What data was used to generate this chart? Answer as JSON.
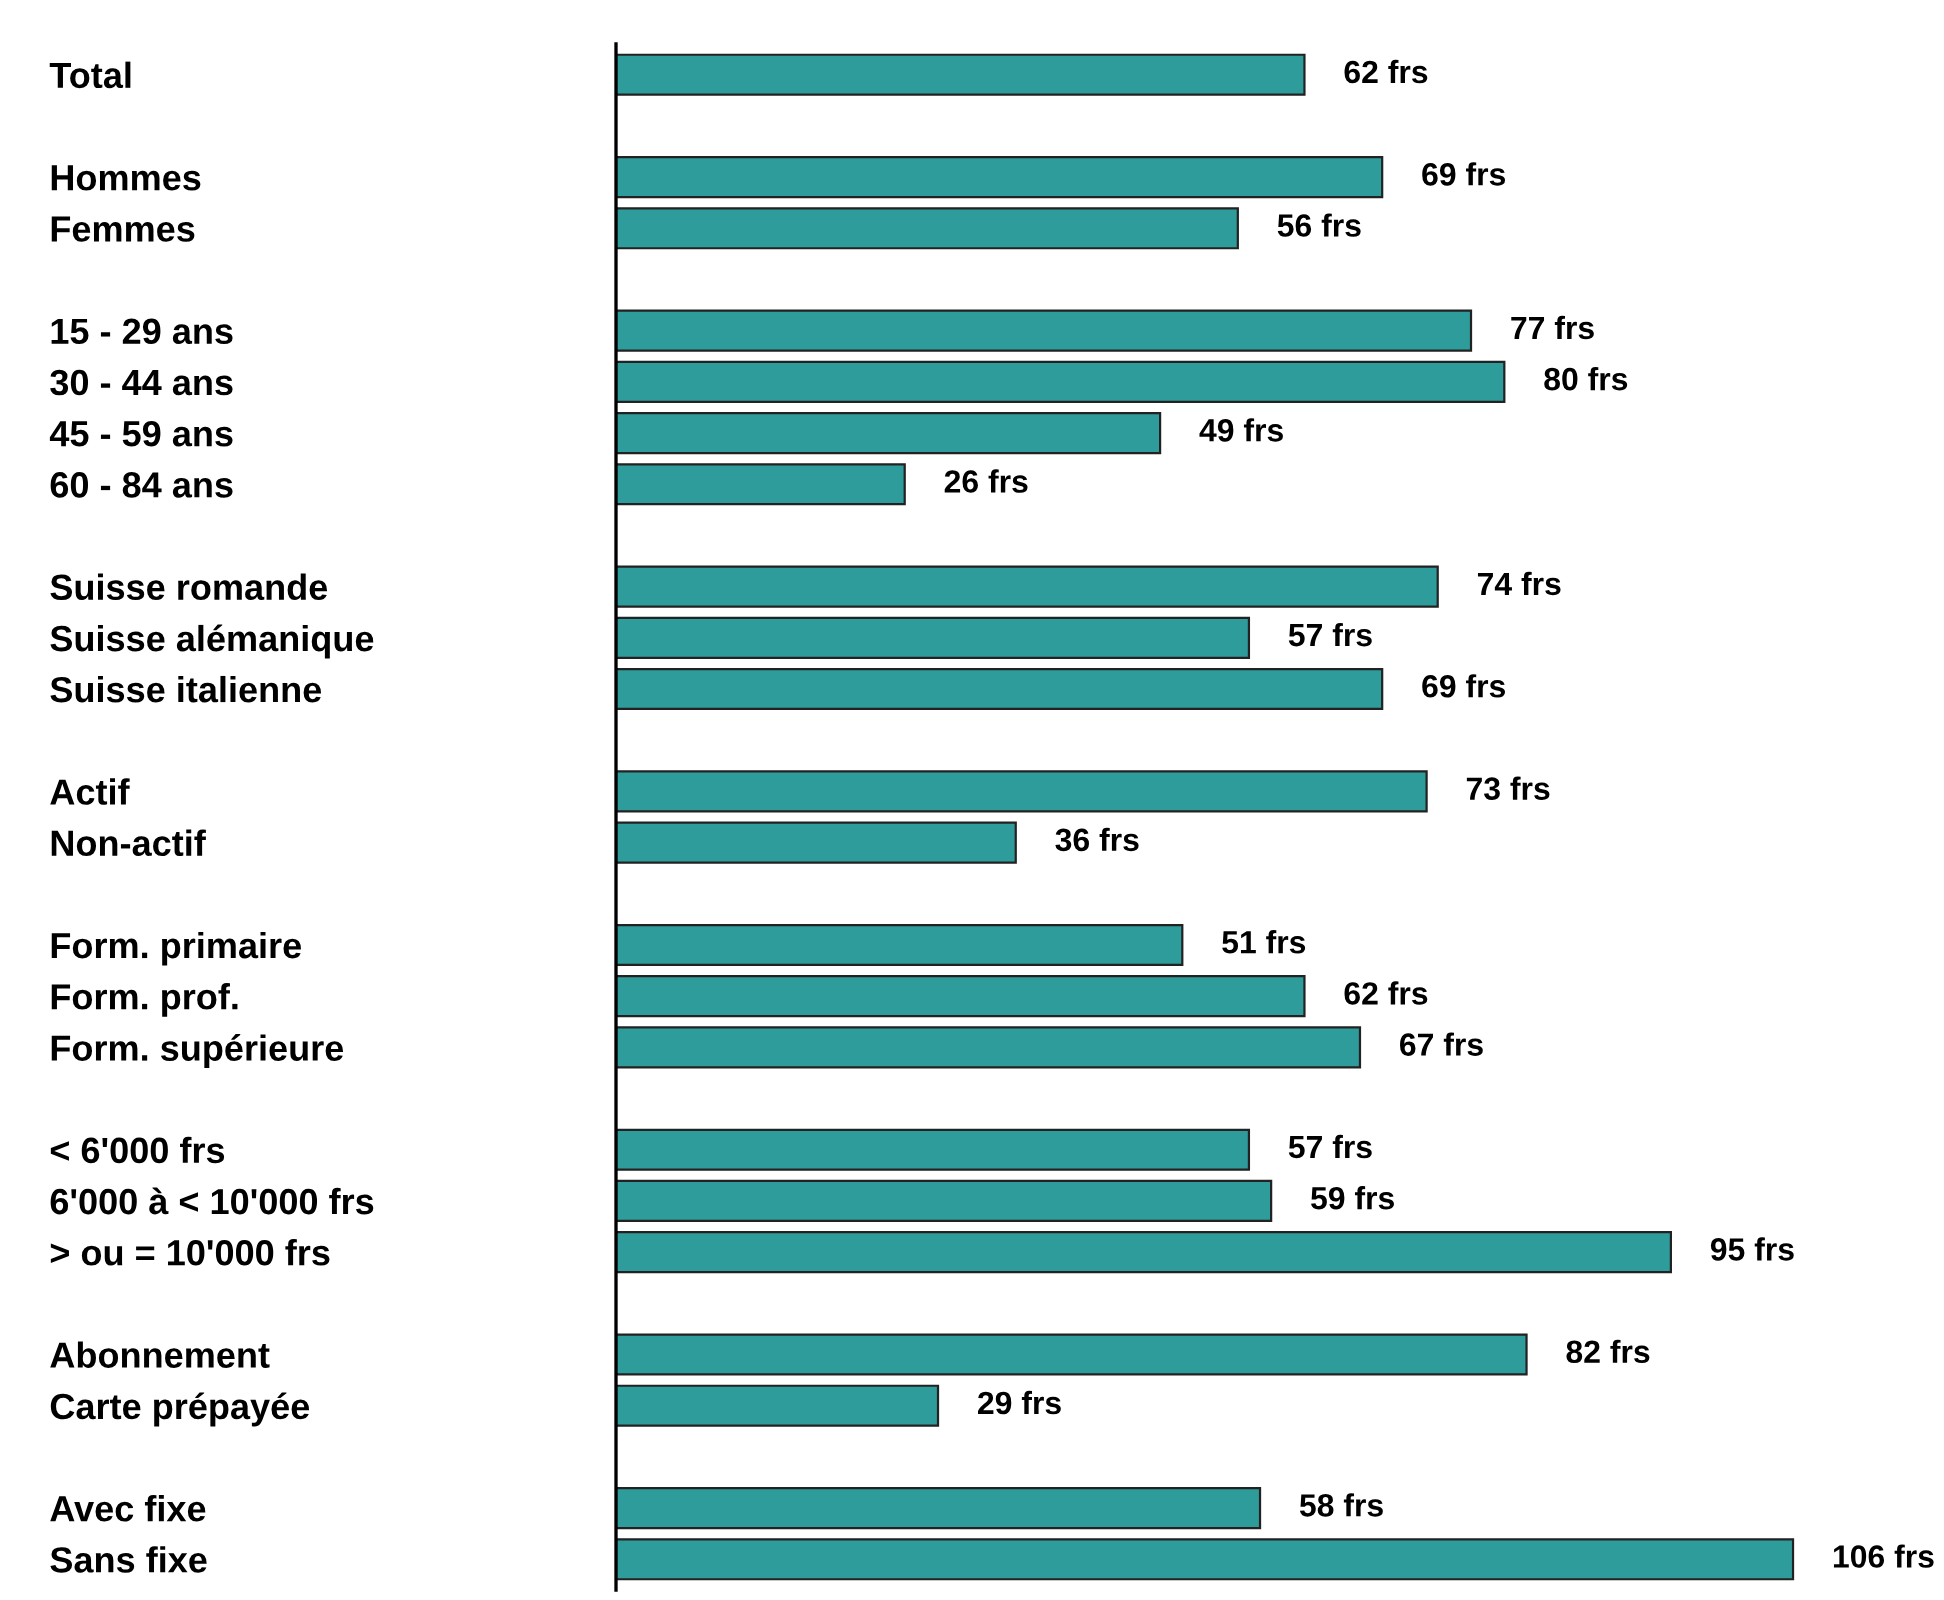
{
  "chart_data": {
    "type": "bar",
    "orientation": "horizontal",
    "data_labels": false,
    "color": "#2f9c9c",
    "categories": [
      "Total",
      null,
      "Hommes",
      "Femmes",
      null,
      "15 - 29 ans",
      "30 - 44 ans",
      "45 - 59 ans",
      "60 - 84 ans",
      null,
      "Suisse romande",
      "Suisse alémanique",
      "Suisse italienne",
      null,
      "Actif",
      "Non-actif",
      null,
      "Form. primaire",
      "Form. prof.",
      "Form. supérieure",
      null,
      "< 6'000 frs",
      "6'000 à < 10'000 frs",
      "> ou = 10'000 frs",
      null,
      "Abonnement",
      "Carte prépayée",
      null,
      "Avec fixe",
      "Sans fixe"
    ],
    "values": [
      62,
      null,
      69,
      56,
      null,
      77,
      80,
      49,
      26,
      null,
      74,
      57,
      69,
      null,
      73,
      36,
      null,
      51,
      62,
      67,
      null,
      57,
      59,
      95,
      null,
      82,
      29,
      null,
      58,
      106
    ],
    "value_labels": [
      "62 frs",
      null,
      "69 frs",
      "56 frs",
      null,
      "77 frs",
      "80 frs",
      "49 frs",
      "26 frs",
      null,
      "74 frs",
      "57 frs",
      "69 frs",
      null,
      "73 frs",
      "36 frs",
      null,
      "51 frs",
      "62 frs",
      "67 frs",
      null,
      "57 frs",
      "59 frs",
      "95 frs",
      null,
      "82 frs",
      "29 frs",
      null,
      "58 frs",
      "106 frs"
    ]
  }
}
